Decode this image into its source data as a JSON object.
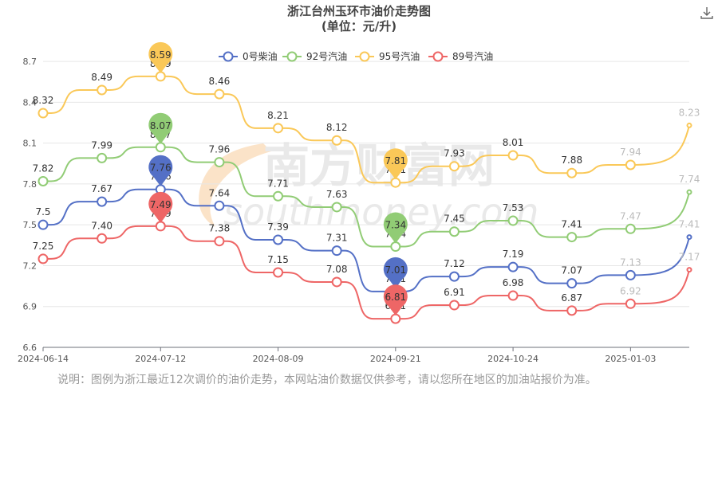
{
  "footnote": "说明：图例为浙江最近12次调价的油价走势，本网站油价数据仅供参考，请以您所在地区的加油站报价为准。",
  "watermark": {
    "cn": "南方财富网",
    "en": "southmoney.com"
  },
  "icons": {
    "download": "download-icon"
  },
  "chart_data": {
    "type": "line",
    "title": "浙江台州玉环市油价走势图",
    "subtitle": "(单位：元/升)",
    "ylim": [
      6.6,
      8.8
    ],
    "yticks": [
      "6.6",
      "6.9",
      "7.2",
      "7.5",
      "7.8",
      "8.1",
      "8.4",
      "8.7"
    ],
    "xticks": [
      "2024-06-14",
      "2024-07-12",
      "2024-08-09",
      "2024-09-21",
      "2024-10-24",
      "2025-01-03"
    ],
    "xtick_index": [
      0,
      2,
      4,
      6,
      8,
      10
    ],
    "legend_position": "top-center",
    "grid": "horizontal",
    "series": [
      {
        "name": "0号柴油",
        "color": "#5470c6",
        "values": [
          7.5,
          7.67,
          7.76,
          7.64,
          7.39,
          7.31,
          7.01,
          7.12,
          7.19,
          7.07,
          7.13,
          7.41
        ],
        "labels": [
          "7.5",
          "7.67",
          "7.76",
          "7.64",
          "7.39",
          "7.31",
          "7.01",
          "7.12",
          "7.19",
          "7.07",
          "7.13",
          "7.41"
        ],
        "max_label": "7.76",
        "min_label": "7.01"
      },
      {
        "name": "92号汽油",
        "color": "#91cc75",
        "values": [
          7.82,
          7.99,
          8.07,
          7.96,
          7.71,
          7.63,
          7.34,
          7.45,
          7.53,
          7.41,
          7.47,
          7.74
        ],
        "labels": [
          "7.82",
          "7.99",
          "8.07",
          "7.96",
          "7.71",
          "7.63",
          "7.34",
          "7.45",
          "7.53",
          "7.41",
          "7.47",
          "7.74"
        ],
        "max_label": "8.07",
        "min_label": "7.34"
      },
      {
        "name": "95号汽油",
        "color": "#fac858",
        "values": [
          8.32,
          8.49,
          8.59,
          8.46,
          8.21,
          8.12,
          7.81,
          7.93,
          8.01,
          7.88,
          7.94,
          8.23
        ],
        "labels": [
          "8.32",
          "8.49",
          "8.59",
          "8.46",
          "8.21",
          "8.12",
          "7.81",
          "7.93",
          "8.01",
          "7.88",
          "7.94",
          "8.23"
        ],
        "max_label": "8.59",
        "min_label": "7.81"
      },
      {
        "name": "89号汽油",
        "color": "#ee6666",
        "values": [
          7.25,
          7.4,
          7.49,
          7.38,
          7.15,
          7.08,
          6.81,
          6.91,
          6.98,
          6.87,
          6.92,
          7.17
        ],
        "labels": [
          "7.25",
          "7.40",
          "7.49",
          "7.38",
          "7.15",
          "7.08",
          "6.81",
          "6.91",
          "6.98",
          "6.87",
          "6.92",
          "7.17"
        ],
        "max_label": "7.49",
        "min_label": "6.81"
      }
    ]
  }
}
